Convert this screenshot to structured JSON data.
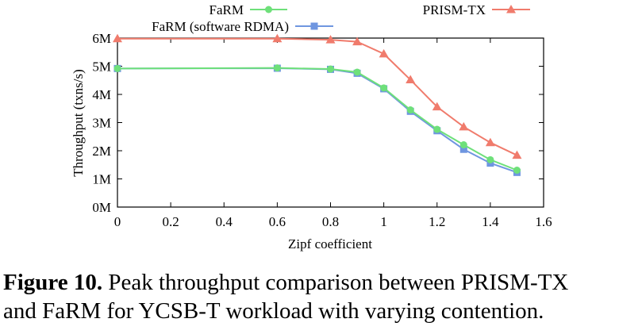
{
  "chart_data": {
    "type": "line",
    "xlabel": "Zipf coefficient",
    "ylabel": "Throughput (txns/s)",
    "xlim": [
      0,
      1.6
    ],
    "ylim": [
      0,
      6000000
    ],
    "x_ticks": [
      "0",
      "0.2",
      "0.4",
      "0.6",
      "0.8",
      "1",
      "1.2",
      "1.4",
      "1.6"
    ],
    "y_ticks": [
      "0M",
      "1M",
      "2M",
      "3M",
      "4M",
      "5M",
      "6M"
    ],
    "grid": false,
    "legend": "top",
    "x": [
      0,
      0.6,
      0.8,
      0.9,
      1.0,
      1.1,
      1.2,
      1.3,
      1.4,
      1.5
    ],
    "series": [
      {
        "name": "FaRM",
        "marker": "circle",
        "color": "#6ee07a",
        "values": [
          4920000,
          4940000,
          4900000,
          4790000,
          4230000,
          3450000,
          2760000,
          2210000,
          1680000,
          1310000
        ]
      },
      {
        "name": "FaRM (software RDMA)",
        "marker": "square",
        "color": "#6f96e0",
        "values": [
          4920000,
          4930000,
          4890000,
          4750000,
          4200000,
          3400000,
          2710000,
          2050000,
          1560000,
          1230000
        ]
      },
      {
        "name": "PRISM-TX",
        "marker": "triangle",
        "color": "#f07b6c",
        "values": [
          5980000,
          5980000,
          5940000,
          5870000,
          5440000,
          4520000,
          3560000,
          2850000,
          2290000,
          1840000
        ]
      }
    ]
  },
  "caption": {
    "label": "Figure 10.",
    "line1": "Peak throughput comparison between PRISM-TX",
    "line2": "and FaRM for YCSB-T workload with varying contention."
  }
}
